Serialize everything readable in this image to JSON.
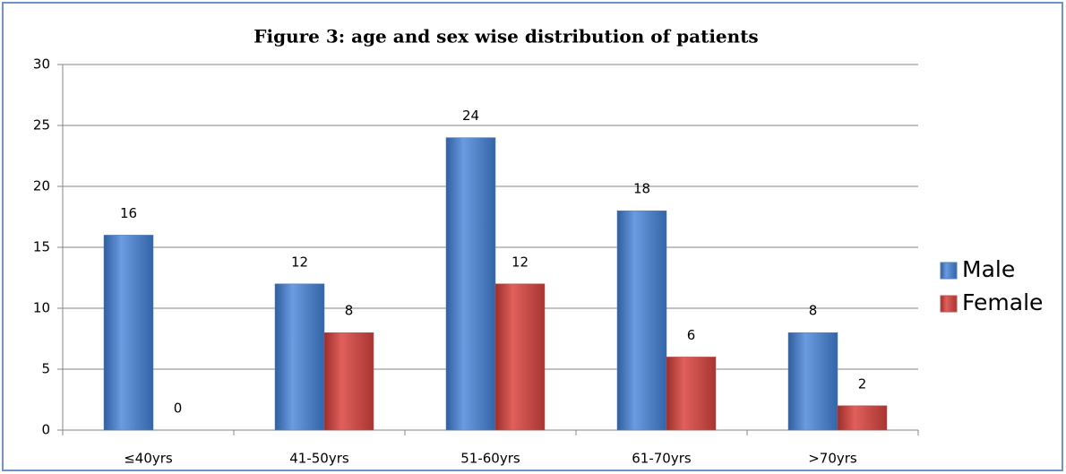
{
  "chart_data": {
    "type": "bar",
    "title": "Figure 3:  age and sex wise distribution of patients",
    "categories": [
      "≤40yrs",
      "41-50yrs",
      "51-60yrs",
      "61-70yrs",
      ">70yrs"
    ],
    "series": [
      {
        "name": "Male",
        "color": "#4a7ebb",
        "values": [
          16,
          12,
          24,
          18,
          8
        ]
      },
      {
        "name": "Female",
        "color": "#c0504d",
        "values": [
          0,
          8,
          12,
          6,
          2
        ]
      }
    ],
    "ylim": [
      0,
      30
    ],
    "yticks": [
      0,
      5,
      10,
      15,
      20,
      25,
      30
    ],
    "grid": true,
    "legend": "right"
  }
}
